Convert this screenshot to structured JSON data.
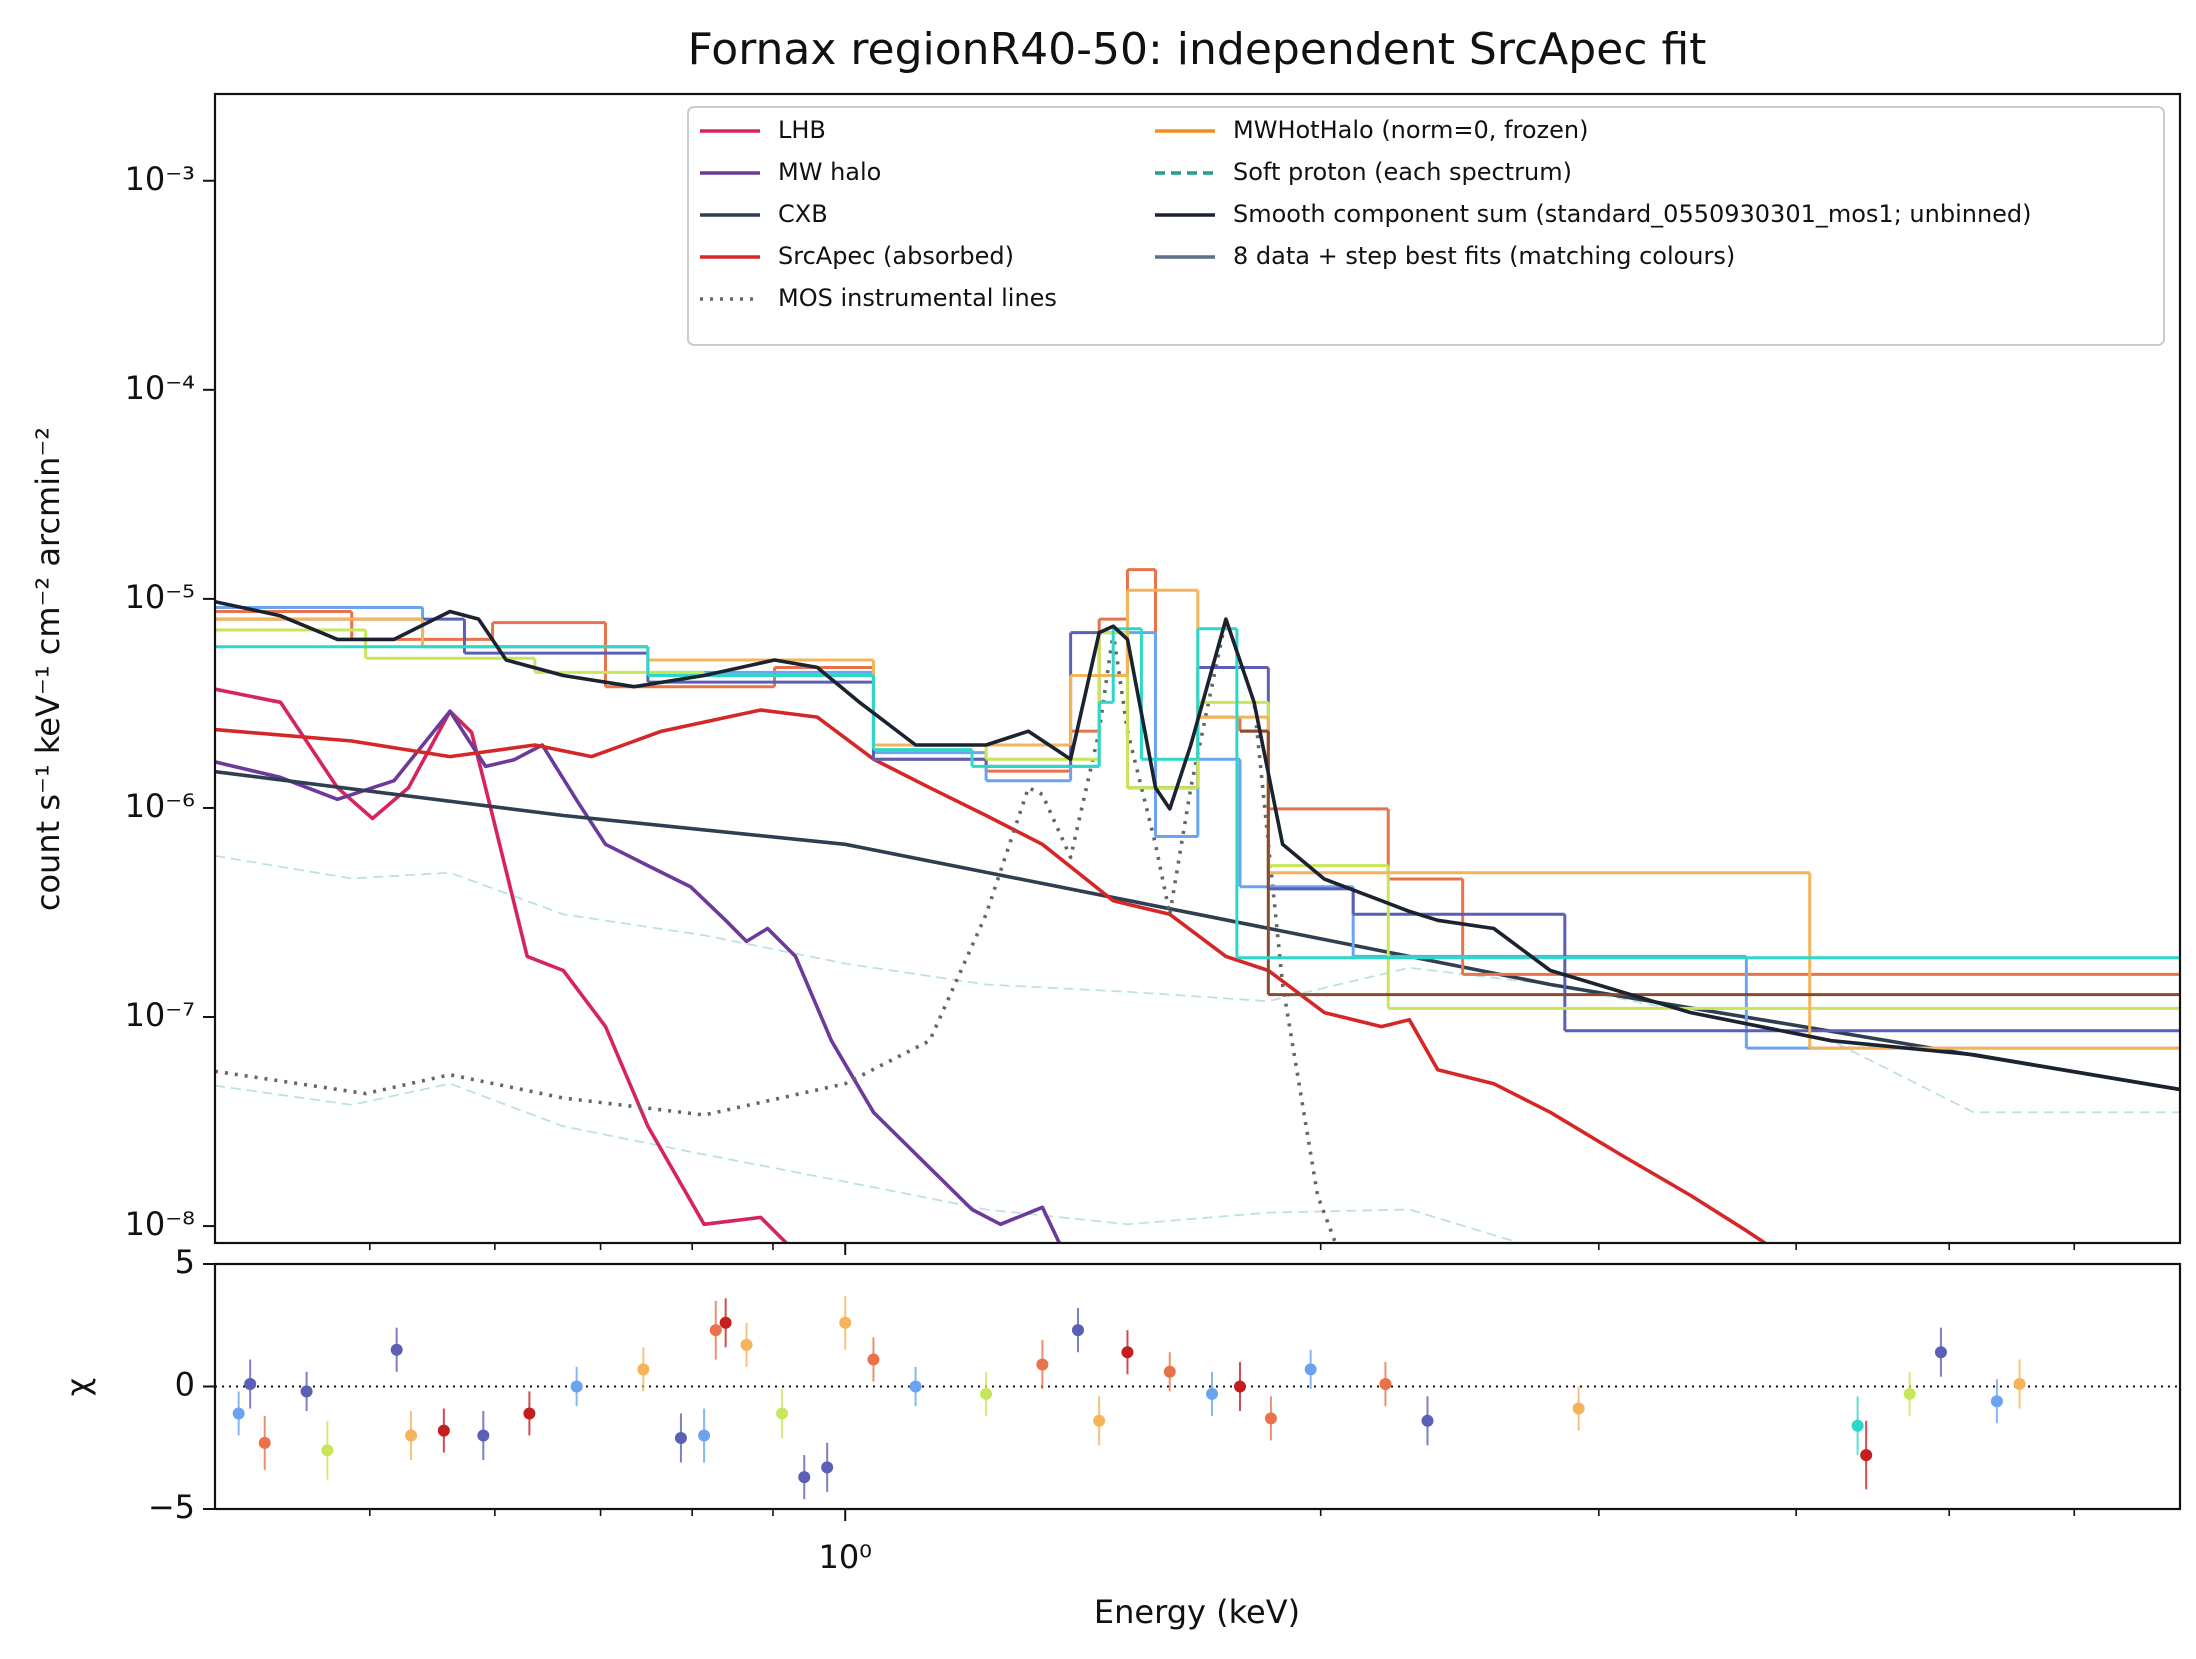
{
  "chart_data": [
    {
      "type": "line",
      "title": "Fornax regionR40-50: independent SrcApec fit",
      "ylabel": "count s⁻¹ keV⁻¹ cm⁻² arcmin⁻²",
      "xlog": true,
      "ylog": true,
      "xlim": [
        0.399,
        7.0
      ],
      "ylim": [
        8.3e-09,
        0.0026
      ],
      "xticks": [
        {
          "value": 1,
          "label": "10⁰"
        }
      ],
      "xminorticks": [
        0.5,
        0.6,
        0.7,
        0.8,
        0.9,
        2,
        3,
        4,
        5,
        6
      ],
      "yticks": [
        {
          "value": 0.001,
          "label": "10⁻³"
        },
        {
          "value": 0.0001,
          "label": "10⁻⁴"
        },
        {
          "value": 1e-05,
          "label": "10⁻⁵"
        },
        {
          "value": 1e-06,
          "label": "10⁻⁶"
        },
        {
          "value": 1e-07,
          "label": "10⁻⁷"
        },
        {
          "value": 1e-08,
          "label": "10⁻⁸"
        }
      ],
      "legend": "upper right",
      "series": [
        {
          "name": "LHB",
          "color": "#d6245e",
          "x": [
            0.399,
            0.439,
            0.477,
            0.502,
            0.529,
            0.562,
            0.58,
            0.598,
            0.629,
            0.663,
            0.705,
            0.75,
            0.814,
            0.884,
            0.93
          ],
          "values": [
            3.7e-06,
            3.2e-06,
            1.25e-06,
            8.9e-07,
            1.25e-06,
            2.9e-06,
            2.3e-06,
            9.2e-07,
            1.95e-07,
            1.67e-07,
            9e-08,
            3e-08,
            1.02e-08,
            1.1e-08,
            7.5e-09
          ]
        },
        {
          "name": "MW halo",
          "color": "#6b3a9a",
          "x": [
            0.399,
            0.439,
            0.477,
            0.518,
            0.562,
            0.592,
            0.617,
            0.643,
            0.677,
            0.705,
            0.75,
            0.798,
            0.84,
            0.866,
            0.893,
            0.93,
            0.98,
            1.042,
            1.131,
            1.203,
            1.254,
            1.333,
            1.375
          ],
          "values": [
            1.66e-06,
            1.4e-06,
            1.1e-06,
            1.35e-06,
            2.9e-06,
            1.58e-06,
            1.7e-06,
            2e-06,
            1.07e-06,
            6.7e-07,
            5.3e-07,
            4.2e-07,
            2.9e-07,
            2.3e-07,
            2.65e-07,
            1.95e-07,
            7.7e-08,
            3.5e-08,
            1.9e-08,
            1.2e-08,
            1.02e-08,
            1.23e-08,
            7.5e-09
          ]
        },
        {
          "name": "CXB",
          "color": "#2f3e50",
          "x": [
            0.399,
            0.663,
            1.0,
            1.672,
            2.795,
            7.0
          ],
          "values": [
            1.49e-06,
            9.2e-07,
            6.7e-07,
            3.1e-07,
            1.43e-07,
            4.5e-08
          ]
        },
        {
          "name": "SrcApec (absorbed)",
          "color": "#d62728",
          "x": [
            0.399,
            0.487,
            0.562,
            0.636,
            0.691,
            0.765,
            0.884,
            0.96,
            1.042,
            1.131,
            1.228,
            1.333,
            1.478,
            1.605,
            1.742,
            1.853,
            2.011,
            2.185,
            2.276,
            2.372,
            2.574,
            2.795,
            3.096,
            3.43,
            3.72,
            3.9
          ],
          "values": [
            2.37e-06,
            2.09e-06,
            1.76e-06,
            2e-06,
            1.76e-06,
            2.33e-06,
            2.94e-06,
            2.72e-06,
            1.71e-06,
            1.25e-06,
            9.2e-07,
            6.7e-07,
            3.6e-07,
            3.1e-07,
            1.95e-07,
            1.67e-07,
            1.05e-07,
            9e-08,
            9.7e-08,
            5.6e-08,
            4.8e-08,
            3.5e-08,
            2.2e-08,
            1.4e-08,
            9.5e-09,
            7.5e-09
          ]
        },
        {
          "name": "MOS instrumental lines",
          "color": "#666666",
          "dash": "dot",
          "x": [
            0.399,
            0.497,
            0.562,
            0.663,
            0.814,
            1.0,
            1.131,
            1.228,
            1.306,
            1.333,
            1.389,
            1.448,
            1.478,
            1.509,
            1.572,
            1.605,
            1.655,
            1.742,
            1.815,
            1.892,
            1.991,
            2.054
          ],
          "values": [
            5.5e-08,
            4.3e-08,
            5.3e-08,
            4.1e-08,
            3.4e-08,
            4.8e-08,
            7.7e-08,
            3.1e-07,
            1.25e-06,
            1.16e-06,
            5.8e-07,
            2.33e-06,
            6.9e-06,
            2.33e-06,
            6.7e-07,
            3.1e-07,
            1.25e-06,
            8e-06,
            3.2e-06,
            1.43e-07,
            1.4e-08,
            7.5e-09
          ]
        },
        {
          "name": "MWHotHalo (norm=0, frozen)",
          "color": "#f28e1c",
          "x": [],
          "values": []
        },
        {
          "name": "Soft proton (each spectrum)",
          "color": "#2a9d8f",
          "dash": "dash",
          "x": [
            0.399,
            0.487,
            0.562,
            0.663,
            0.814,
            1.0,
            1.228,
            1.509,
            1.853,
            2.276,
            2.795,
            3.43,
            4.21,
            5.18,
            7.0
          ],
          "values": [
            5.9e-07,
            4.6e-07,
            4.9e-07,
            3.1e-07,
            2.46e-07,
            1.8e-07,
            1.43e-07,
            1.32e-07,
            1.19e-07,
            1.72e-07,
            1.43e-07,
            1.05e-07,
            7.7e-08,
            3.5e-08,
            3.5e-08
          ]
        },
        {
          "name": "Smooth component sum (standard_0550930301_mos1; unbinned)",
          "color": "#1b2230",
          "x": [
            0.399,
            0.439,
            0.477,
            0.518,
            0.562,
            0.586,
            0.61,
            0.663,
            0.735,
            0.814,
            0.902,
            0.96,
            1.021,
            1.108,
            1.228,
            1.306,
            1.389,
            1.448,
            1.478,
            1.509,
            1.572,
            1.605,
            1.655,
            1.742,
            1.815,
            1.892,
            2.011,
            2.185,
            2.276,
            2.372,
            2.574,
            2.795,
            3.43,
            4.21,
            5.18,
            7.0
          ],
          "values": [
            9.7e-06,
            8.3e-06,
            6.4e-06,
            6.4e-06,
            8.7e-06,
            8e-06,
            5.1e-06,
            4.3e-06,
            3.8e-06,
            4.3e-06,
            5.1e-06,
            4.7e-06,
            3.2e-06,
            2e-06,
            2e-06,
            2.33e-06,
            1.71e-06,
            6.9e-06,
            7.4e-06,
            6.4e-06,
            1.25e-06,
            9.9e-07,
            2e-06,
            8e-06,
            3.2e-06,
            6.7e-07,
            4.57e-07,
            3.6e-07,
            3.2e-07,
            2.9e-07,
            2.65e-07,
            1.67e-07,
            1.05e-07,
            7.7e-08,
            6.6e-08,
            4.5e-08
          ]
        },
        {
          "color": "#2a9d8f",
          "dash": "dash",
          "x": [
            0.399,
            0.487,
            0.562,
            0.663,
            0.814,
            1.0,
            1.228,
            1.509,
            1.853,
            2.276,
            2.795
          ],
          "values": [
            4.7e-08,
            3.8e-08,
            4.8e-08,
            3e-08,
            2.2e-08,
            1.63e-08,
            1.2e-08,
            1.02e-08,
            1.16e-08,
            1.2e-08,
            7.5e-09
          ]
        }
      ],
      "steps": {
        "name": "8 data + step best fits (matching colours)",
        "color": "#5a6e85",
        "series": [
          {
            "color": "#e8734a",
            "bins": [
              0.399,
              0.487,
              0.598,
              0.705,
              0.902,
              1.042,
              1.228,
              1.389,
              1.448,
              1.509,
              1.572,
              1.672,
              1.778,
              1.853,
              2.207,
              2.46,
              7.0
            ],
            "values": [
              8.7e-06,
              6.4e-06,
              7.7e-06,
              3.8e-06,
              4.7e-06,
              1.71e-06,
              1.5e-06,
              2.33e-06,
              8e-06,
              1.38e-05,
              1.25e-06,
              2.72e-06,
              2.33e-06,
              9.9e-07,
              4.57e-07,
              1.6e-07
            ]
          },
          {
            "color": "#6aa3f0",
            "bins": [
              0.399,
              0.54,
              0.75,
              1.042,
              1.228,
              1.389,
              1.448,
              1.509,
              1.572,
              1.672,
              1.778,
              2.097,
              3.72,
              7.0
            ],
            "values": [
              9.1e-06,
              5.9e-06,
              4.45e-06,
              1.84e-06,
              1.35e-06,
              1.58e-06,
              4.3e-06,
              6.9e-06,
              7.3e-07,
              1.71e-06,
              4.2e-07,
              1.95e-07,
              7.1e-08
            ]
          },
          {
            "color": "#5b5fb5",
            "bins": [
              0.399,
              0.574,
              0.75,
              1.042,
              1.228,
              1.389,
              1.509,
              1.672,
              1.853,
              2.097,
              2.855,
              7.0
            ],
            "values": [
              8e-06,
              5.5e-06,
              4e-06,
              1.71e-06,
              1.58e-06,
              6.9e-06,
              1.25e-06,
              4.7e-06,
              4.1e-07,
              3.1e-07,
              8.6e-08
            ]
          },
          {
            "color": "#c8e65a",
            "bins": [
              0.399,
              0.497,
              0.636,
              0.814,
              1.042,
              1.228,
              1.448,
              1.509,
              1.672,
              1.853,
              2.207,
              7.0
            ],
            "values": [
              7.1e-06,
              5.2e-06,
              4.45e-06,
              4.3e-06,
              2e-06,
              1.71e-06,
              6.9e-06,
              1.25e-06,
              3.2e-06,
              5.3e-07,
              1.1e-07
            ]
          },
          {
            "color": "#f5b35a",
            "bins": [
              0.399,
              0.54,
              0.75,
              1.042,
              1.389,
              1.509,
              1.672,
              1.853,
              4.08,
              7.0
            ],
            "values": [
              8e-06,
              5.9e-06,
              5.1e-06,
              2e-06,
              4.3e-06,
              1.1e-05,
              2.72e-06,
              4.9e-07,
              7.1e-08
            ]
          },
          {
            "color": "#8b4a2b",
            "bins": [
              1.778,
              1.853,
              7.0
            ],
            "values": [
              2.33e-06,
              1.28e-07
            ]
          },
          {
            "color": "#2ed8c8",
            "bins": [
              0.399,
              0.75,
              1.042,
              1.203,
              1.448,
              1.478,
              1.54,
              1.672,
              1.77,
              7.0
            ],
            "values": [
              5.9e-06,
              4.3e-06,
              1.9e-06,
              1.58e-06,
              3.2e-06,
              7.2e-06,
              1.71e-06,
              7.2e-06,
              1.92e-07
            ]
          }
        ]
      }
    },
    {
      "type": "scatter",
      "ylabel": "χ",
      "xlabel": "Energy (keV)",
      "xlog": true,
      "xlim": [
        0.399,
        7.0
      ],
      "xticks": [
        {
          "value": 1,
          "label": "10⁰"
        }
      ],
      "xminorticks": [
        0.5,
        0.6,
        0.7,
        0.8,
        0.9,
        2,
        3,
        4,
        5,
        6
      ],
      "ylim": [
        -5,
        5
      ],
      "yticks": [
        {
          "value": -5,
          "label": "−5"
        },
        0,
        5
      ],
      "zero_line": true,
      "x": [
        0.413,
        0.42,
        0.429,
        0.456,
        0.47,
        0.52,
        0.531,
        0.557,
        0.59,
        0.631,
        0.676,
        0.745,
        0.787,
        0.814,
        0.828,
        0.84,
        0.866,
        0.912,
        0.942,
        0.974,
        1.0,
        1.042,
        1.108,
        1.228,
        1.333,
        1.404,
        1.448,
        1.509,
        1.605,
        1.707,
        1.778,
        1.86,
        1.971,
        2.198,
        2.337,
        2.913,
        4.375,
        4.43,
        4.72,
        4.94,
        5.36,
        5.54
      ],
      "values": [
        -1.1,
        0.1,
        -2.3,
        -0.2,
        -2.6,
        1.5,
        -2.0,
        -1.8,
        -2.0,
        -1.1,
        0,
        0.7,
        -2.1,
        -2.0,
        2.3,
        2.6,
        1.7,
        -1.1,
        -3.7,
        -3.3,
        2.6,
        1.1,
        0,
        -0.3,
        0.9,
        2.3,
        -1.4,
        1.4,
        0.6,
        -0.3,
        0,
        -1.3,
        0.7,
        0.1,
        -1.4,
        -0.9,
        -1.6,
        -2.8,
        -0.3,
        1.4,
        -0.6,
        0.1
      ],
      "errors": [
        0.9,
        1.0,
        1.1,
        0.8,
        1.2,
        0.9,
        1.0,
        0.9,
        1.0,
        0.9,
        0.8,
        0.9,
        1.0,
        1.1,
        1.2,
        1.0,
        0.9,
        1.0,
        0.9,
        1.0,
        1.1,
        0.9,
        0.8,
        0.9,
        1.0,
        0.9,
        1.0,
        0.9,
        0.8,
        0.9,
        1.0,
        0.9,
        0.8,
        0.9,
        1.0,
        0.9,
        1.2,
        1.4,
        0.9,
        1.0,
        0.9,
        1.0
      ],
      "colors": [
        "#6aa3f0",
        "#5b5fb5",
        "#e8734a",
        "#5b5fb5",
        "#c8e65a",
        "#5b5fb5",
        "#f5b35a",
        "#c41e1e",
        "#5b5fb5",
        "#c41e1e",
        "#6aa3f0",
        "#f5b35a",
        "#5b5fb5",
        "#6aa3f0",
        "#e8734a",
        "#c41e1e",
        "#f5b35a",
        "#c8e65a",
        "#5b5fb5",
        "#5b5fb5",
        "#f5b35a",
        "#e8734a",
        "#6aa3f0",
        "#c8e65a",
        "#e8734a",
        "#5b5fb5",
        "#f5b35a",
        "#c41e1e",
        "#e8734a",
        "#6aa3f0",
        "#c41e1e",
        "#e8734a",
        "#6aa3f0",
        "#e8734a",
        "#5b5fb5",
        "#f5b35a",
        "#2ed8c8",
        "#c41e1e",
        "#c8e65a",
        "#5b5fb5",
        "#6aa3f0",
        "#f5b35a"
      ]
    }
  ]
}
